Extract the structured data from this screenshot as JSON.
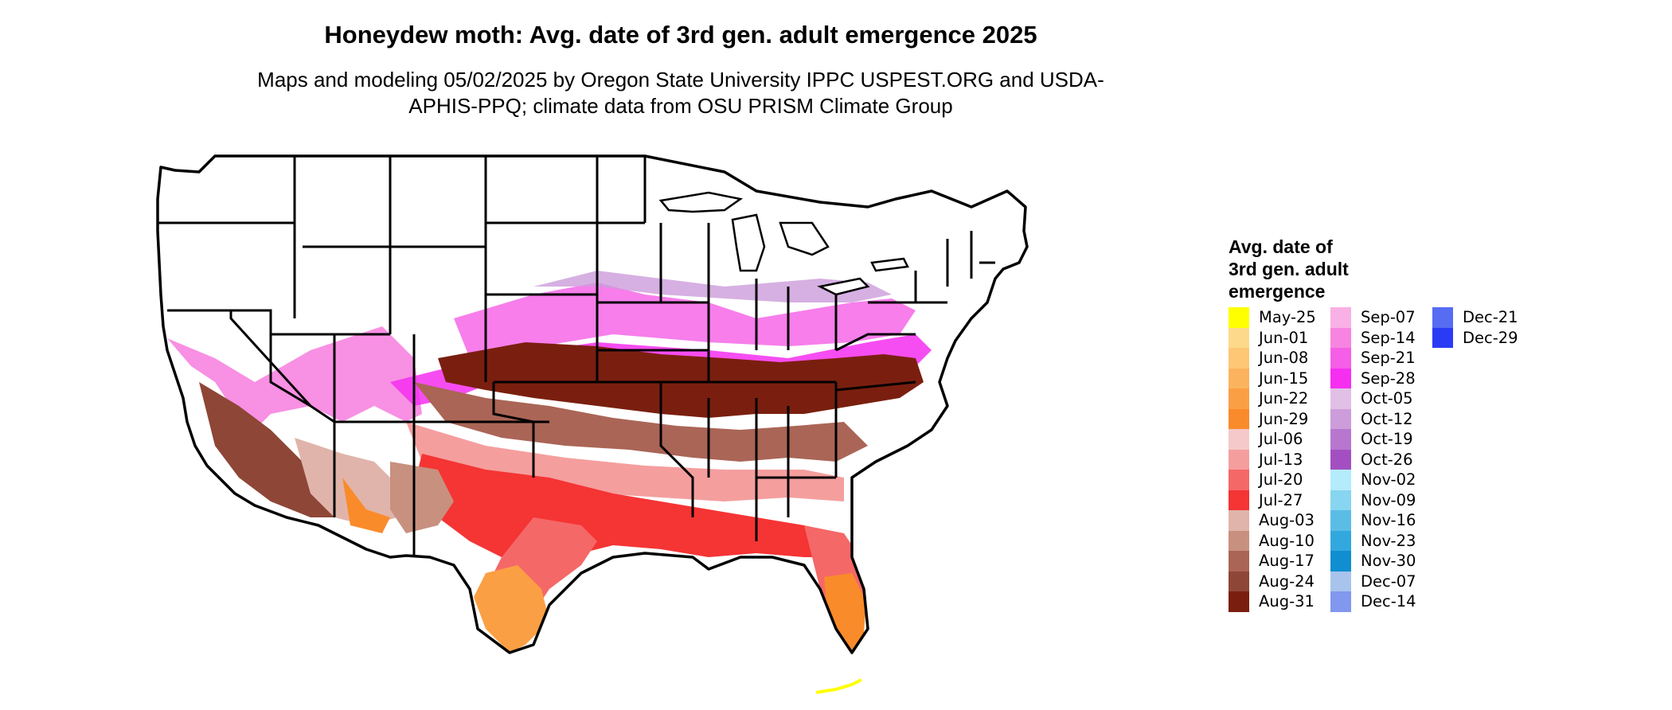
{
  "title": "Honeydew moth: Avg. date of 3rd gen. adult emergence 2025",
  "subtitle": "Maps and modeling 05/02/2025 by Oregon State University IPPC USPEST.ORG and USDA-APHIS-PPQ; climate data from OSU PRISM Climate Group",
  "legend": {
    "title_lines": [
      "Avg. date of",
      "3rd gen. adult",
      "emergence"
    ],
    "columns": [
      [
        {
          "label": "May-25",
          "color": "#ffff00"
        },
        {
          "label": "Jun-01",
          "color": "#fdd98a"
        },
        {
          "label": "Jun-08",
          "color": "#fdc775"
        },
        {
          "label": "Jun-15",
          "color": "#fcb35e"
        },
        {
          "label": "Jun-22",
          "color": "#fb9f44"
        },
        {
          "label": "Jun-29",
          "color": "#fa8b2a"
        },
        {
          "label": "Jul-06",
          "color": "#f5c9c9"
        },
        {
          "label": "Jul-13",
          "color": "#f59e9e"
        },
        {
          "label": "Jul-20",
          "color": "#f56868"
        },
        {
          "label": "Jul-27",
          "color": "#f53434"
        },
        {
          "label": "Aug-03",
          "color": "#e0b4aa"
        },
        {
          "label": "Aug-10",
          "color": "#c8907f"
        },
        {
          "label": "Aug-17",
          "color": "#aa6556"
        },
        {
          "label": "Aug-24",
          "color": "#8e4636"
        },
        {
          "label": "Aug-31",
          "color": "#7a1f0f"
        }
      ],
      [
        {
          "label": "Sep-07",
          "color": "#f9b0e4"
        },
        {
          "label": "Sep-14",
          "color": "#f784e0"
        },
        {
          "label": "Sep-21",
          "color": "#f55ee6"
        },
        {
          "label": "Sep-28",
          "color": "#f52ef0"
        },
        {
          "label": "Oct-05",
          "color": "#e1c0e6"
        },
        {
          "label": "Oct-12",
          "color": "#cc9cdb"
        },
        {
          "label": "Oct-19",
          "color": "#b876cf"
        },
        {
          "label": "Oct-26",
          "color": "#a34fc2"
        },
        {
          "label": "Nov-02",
          "color": "#b4ecfc"
        },
        {
          "label": "Nov-09",
          "color": "#87d5f0"
        },
        {
          "label": "Nov-16",
          "color": "#5bbce6"
        },
        {
          "label": "Nov-23",
          "color": "#33a8de"
        },
        {
          "label": "Nov-30",
          "color": "#0f8fd0"
        },
        {
          "label": "Dec-07",
          "color": "#a8c4ec"
        },
        {
          "label": "Dec-14",
          "color": "#8198ee"
        }
      ],
      [
        {
          "label": "Dec-21",
          "color": "#566cf2"
        },
        {
          "label": "Dec-29",
          "color": "#2a3bf5"
        }
      ]
    ]
  }
}
